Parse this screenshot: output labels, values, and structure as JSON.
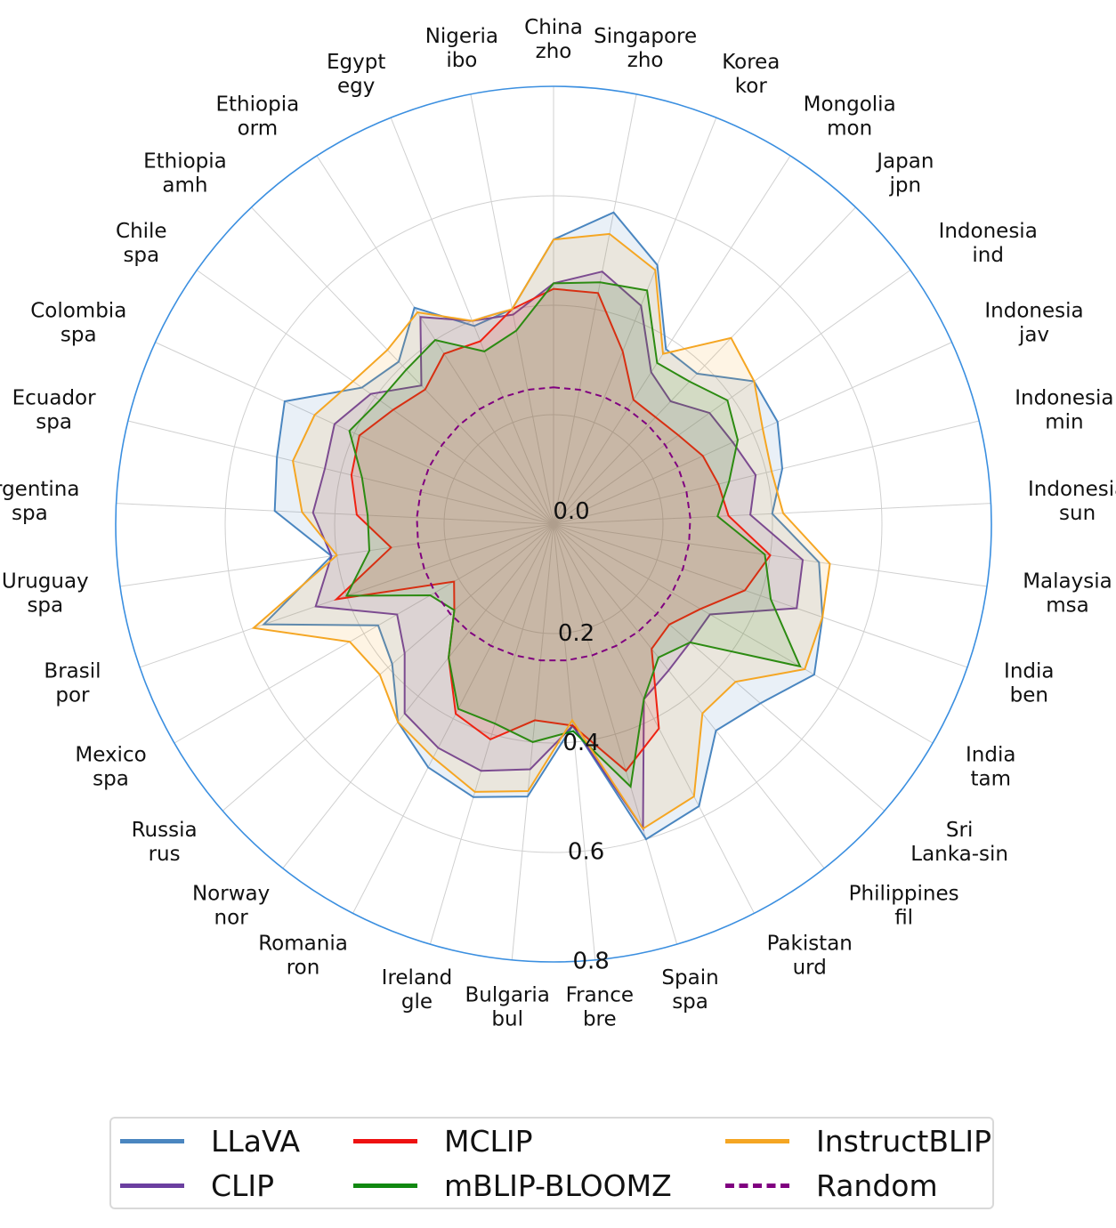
{
  "chart_data": {
    "type": "radar",
    "title": "",
    "categories": [
      [
        "China",
        "zho"
      ],
      [
        "Singapore",
        "zho"
      ],
      [
        "Korea",
        "kor"
      ],
      [
        "Mongolia",
        "mon"
      ],
      [
        "Japan",
        "jpn"
      ],
      [
        "Indonesia",
        "ind"
      ],
      [
        "Indonesia",
        "jav"
      ],
      [
        "Indonesia",
        "min"
      ],
      [
        "Indonesia",
        "sun"
      ],
      [
        "Malaysia",
        "msa"
      ],
      [
        "India",
        "ben"
      ],
      [
        "India",
        "tam"
      ],
      [
        "Sri",
        "Lanka-sin"
      ],
      [
        "Philippines",
        "fil"
      ],
      [
        "Pakistan",
        "urd"
      ],
      [
        "Spain",
        "spa"
      ],
      [
        "France",
        "bre"
      ],
      [
        "Bulgaria",
        "bul"
      ],
      [
        "Ireland",
        "gle"
      ],
      [
        "Romania",
        "ron"
      ],
      [
        "Norway",
        "nor"
      ],
      [
        "Russia",
        "rus"
      ],
      [
        "Mexico",
        "spa"
      ],
      [
        "Brasil",
        "por"
      ],
      [
        "Uruguay",
        "spa"
      ],
      [
        "Argentina",
        "spa"
      ],
      [
        "Ecuador",
        "spa"
      ],
      [
        "Colombia",
        "spa"
      ],
      [
        "Chile",
        "spa"
      ],
      [
        "Ethiopia",
        "amh"
      ],
      [
        "Ethiopia",
        "orm"
      ],
      [
        "Egypt",
        "egy"
      ],
      [
        "Nigeria",
        "ibo"
      ]
    ],
    "rlim": [
      0,
      0.8
    ],
    "r_ticks": [
      0.0,
      0.2,
      0.4,
      0.6,
      0.8
    ],
    "r_tick_labels": [
      "0.0",
      "0.2",
      "0.4",
      "0.6",
      "0.8"
    ],
    "series": [
      {
        "name": "LLaVA",
        "color": "#4a86c0",
        "fill": true,
        "dashed": false,
        "values": [
          0.52,
          0.58,
          0.51,
          0.38,
          0.38,
          0.45,
          0.45,
          0.43,
          0.4,
          0.49,
          0.52,
          0.55,
          0.5,
          0.48,
          0.58,
          0.6,
          0.37,
          0.5,
          0.52,
          0.5,
          0.46,
          0.39,
          0.37,
          0.56,
          0.41,
          0.51,
          0.52,
          0.54,
          0.43,
          0.41,
          0.47,
          0.39,
          0.4
        ]
      },
      {
        "name": "CLIP",
        "color": "#6b3fa0",
        "fill": true,
        "dashed": false,
        "values": [
          0.44,
          0.47,
          0.43,
          0.33,
          0.31,
          0.35,
          0.36,
          0.38,
          0.36,
          0.46,
          0.47,
          0.33,
          0.33,
          0.34,
          0.36,
          0.58,
          0.37,
          0.45,
          0.47,
          0.46,
          0.44,
          0.36,
          0.33,
          0.46,
          0.41,
          0.44,
          0.43,
          0.44,
          0.41,
          0.35,
          0.45,
          0.4,
          0.39
        ]
      },
      {
        "name": "MCLIP",
        "color": "#ee1111",
        "fill": true,
        "dashed": false,
        "values": [
          0.43,
          0.43,
          0.34,
          0.27,
          0.27,
          0.28,
          0.3,
          0.31,
          0.32,
          0.4,
          0.37,
          0.31,
          0.28,
          0.29,
          0.42,
          0.47,
          0.37,
          0.36,
          0.41,
          0.39,
          0.31,
          0.24,
          0.21,
          0.42,
          0.3,
          0.36,
          0.38,
          0.39,
          0.36,
          0.34,
          0.37,
          0.36,
          0.4
        ]
      },
      {
        "name": "mBLIP-BLOOMZ",
        "color": "#118811",
        "fill": true,
        "dashed": false,
        "values": [
          0.44,
          0.45,
          0.46,
          0.35,
          0.36,
          0.39,
          0.37,
          0.33,
          0.3,
          0.39,
          0.42,
          0.52,
          0.33,
          0.31,
          0.36,
          0.5,
          0.38,
          0.4,
          0.38,
          0.38,
          0.31,
          0.24,
          0.26,
          0.4,
          0.34,
          0.34,
          0.36,
          0.41,
          0.39,
          0.39,
          0.4,
          0.34,
          0.36
        ]
      },
      {
        "name": "InstructBLIP",
        "color": "#f5a623",
        "fill": true,
        "dashed": false,
        "values": [
          0.52,
          0.54,
          0.5,
          0.37,
          0.47,
          0.45,
          0.42,
          0.41,
          0.42,
          0.51,
          0.52,
          0.53,
          0.44,
          0.44,
          0.56,
          0.58,
          0.36,
          0.49,
          0.51,
          0.48,
          0.46,
          0.42,
          0.43,
          0.58,
          0.4,
          0.46,
          0.49,
          0.48,
          0.45,
          0.44,
          0.46,
          0.4,
          0.4
        ]
      },
      {
        "name": "Random",
        "color": "#800080",
        "fill": false,
        "dashed": true,
        "values": [
          0.25,
          0.25,
          0.25,
          0.25,
          0.25,
          0.25,
          0.25,
          0.25,
          0.25,
          0.25,
          0.25,
          0.25,
          0.25,
          0.25,
          0.25,
          0.25,
          0.25,
          0.25,
          0.25,
          0.25,
          0.25,
          0.25,
          0.25,
          0.25,
          0.25,
          0.25,
          0.25,
          0.25,
          0.25,
          0.25,
          0.25,
          0.25,
          0.25
        ]
      }
    ],
    "grid": true,
    "legend_position": "bottom"
  }
}
